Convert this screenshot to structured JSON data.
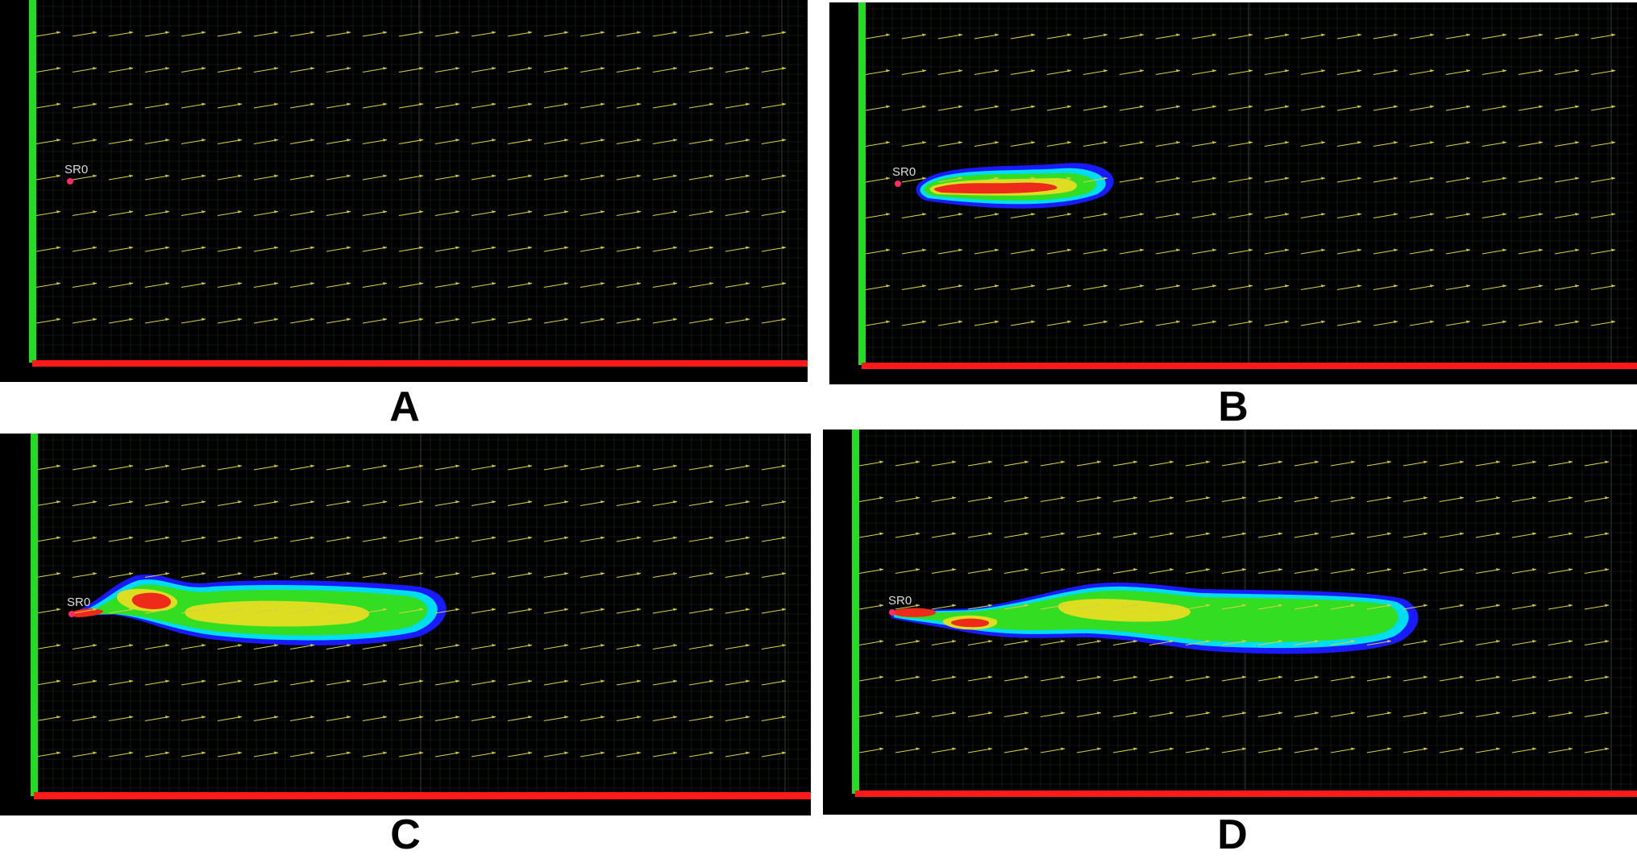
{
  "colors": {
    "background": "#000000",
    "grid": "#1c2a1c",
    "grid_major": "#3a3a3a",
    "wall": "#22dd22",
    "floor": "#ff1a1a",
    "arrow": "#d8d040",
    "source_marker": "#ff2a6a",
    "source_label": "#dddddd",
    "plume_blue": "#1a1aff",
    "plume_cyan": "#00ddee",
    "plume_green": "#33dd22",
    "plume_yellow": "#dddd22",
    "plume_red": "#ee2a1a"
  },
  "panels": [
    {
      "id": "A",
      "caption": "A",
      "source_label": "SR0",
      "plume_extent": 0
    },
    {
      "id": "B",
      "caption": "B",
      "source_label": "SR0",
      "plume_extent": 0.23
    },
    {
      "id": "C",
      "caption": "C",
      "source_label": "SR0",
      "plume_extent": 0.53
    },
    {
      "id": "D",
      "caption": "D",
      "source_label": "SR0",
      "plume_extent": 0.73
    }
  ]
}
